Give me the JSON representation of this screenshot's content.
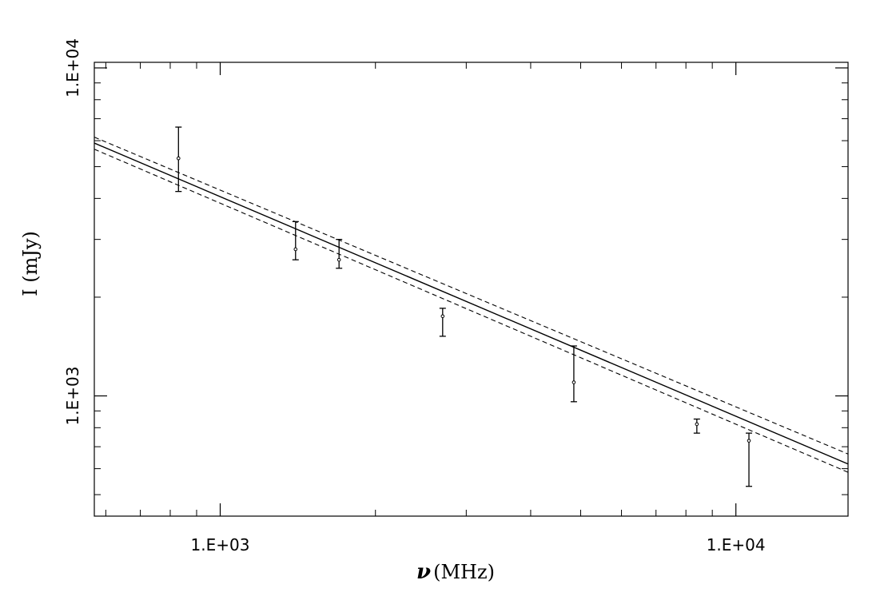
{
  "chart_data": {
    "type": "scatter",
    "title": "",
    "xlabel_symbol": "ν",
    "xlabel": "(MHz)",
    "ylabel": "I (mJy)",
    "xscale": "log",
    "yscale": "log",
    "xlim": [
      570,
      16500
    ],
    "ylim": [
      430,
      10400
    ],
    "grid": false,
    "x_ticks": [
      {
        "value": 1000,
        "label": "1.E+03"
      },
      {
        "value": 10000,
        "label": "1.E+04"
      }
    ],
    "y_ticks": [
      {
        "value": 1000,
        "label": "1.E+03"
      },
      {
        "value": 10000,
        "label": "1.E+04"
      }
    ],
    "series": [
      {
        "kind": "points_with_errorbars",
        "points": [
          {
            "x": 830,
            "y": 5300,
            "yerr_low": 4200,
            "yerr_high": 6600
          },
          {
            "x": 1400,
            "y": 2800,
            "yerr_low": 2600,
            "yerr_high": 3400
          },
          {
            "x": 1700,
            "y": 2600,
            "yerr_low": 2450,
            "yerr_high": 3000
          },
          {
            "x": 2700,
            "y": 1750,
            "yerr_low": 1520,
            "yerr_high": 1850
          },
          {
            "x": 4850,
            "y": 1100,
            "yerr_low": 960,
            "yerr_high": 1420
          },
          {
            "x": 8400,
            "y": 820,
            "yerr_low": 770,
            "yerr_high": 850
          },
          {
            "x": 10600,
            "y": 730,
            "yerr_low": 530,
            "yerr_high": 770
          }
        ]
      },
      {
        "kind": "fit",
        "style": "solid",
        "line": [
          {
            "x": 570,
            "y": 5900
          },
          {
            "x": 16500,
            "y": 620
          }
        ]
      },
      {
        "kind": "confidence-upper",
        "style": "dashed",
        "line": [
          {
            "x": 570,
            "y": 6150
          },
          {
            "x": 16500,
            "y": 665
          }
        ]
      },
      {
        "kind": "confidence-lower",
        "style": "dashed",
        "line": [
          {
            "x": 570,
            "y": 5650
          },
          {
            "x": 16500,
            "y": 585
          }
        ]
      }
    ]
  }
}
